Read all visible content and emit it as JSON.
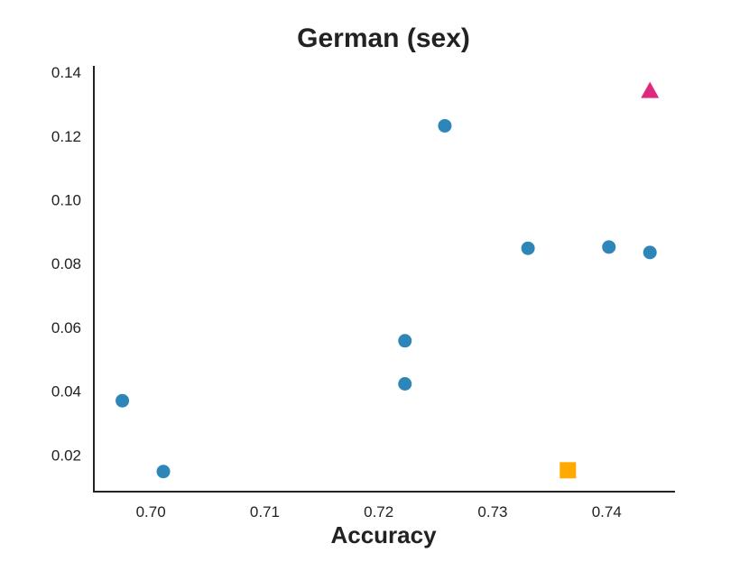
{
  "chart_data": {
    "type": "scatter",
    "title": "German (sex)",
    "xlabel": "Accuracy",
    "ylabel": "",
    "xlim": [
      0.695,
      0.746
    ],
    "ylim": [
      0.0085,
      0.142
    ],
    "xticks": [
      0.7,
      0.71,
      0.72,
      0.73,
      0.74
    ],
    "xtick_labels": [
      "0.70",
      "0.71",
      "0.72",
      "0.73",
      "0.74"
    ],
    "yticks": [
      0.02,
      0.04,
      0.06,
      0.08,
      0.1,
      0.12,
      0.14
    ],
    "ytick_labels": [
      "0.02",
      "0.04",
      "0.06",
      "0.08",
      "0.10",
      "0.12",
      "0.14"
    ],
    "grid": false,
    "series": [
      {
        "marker": "circle",
        "color": "#2E86B8",
        "points": [
          {
            "x": 0.6975,
            "y": 0.037
          },
          {
            "x": 0.7011,
            "y": 0.0148
          },
          {
            "x": 0.7223,
            "y": 0.0423
          },
          {
            "x": 0.7223,
            "y": 0.0558
          },
          {
            "x": 0.7258,
            "y": 0.1232
          },
          {
            "x": 0.7331,
            "y": 0.0848
          },
          {
            "x": 0.7402,
            "y": 0.0852
          },
          {
            "x": 0.7438,
            "y": 0.0835
          }
        ]
      },
      {
        "marker": "square",
        "color": "#FFAA00",
        "points": [
          {
            "x": 0.7366,
            "y": 0.0152
          }
        ]
      },
      {
        "marker": "triangle",
        "color": "#E0287F",
        "points": [
          {
            "x": 0.7438,
            "y": 0.1342
          }
        ]
      }
    ]
  }
}
